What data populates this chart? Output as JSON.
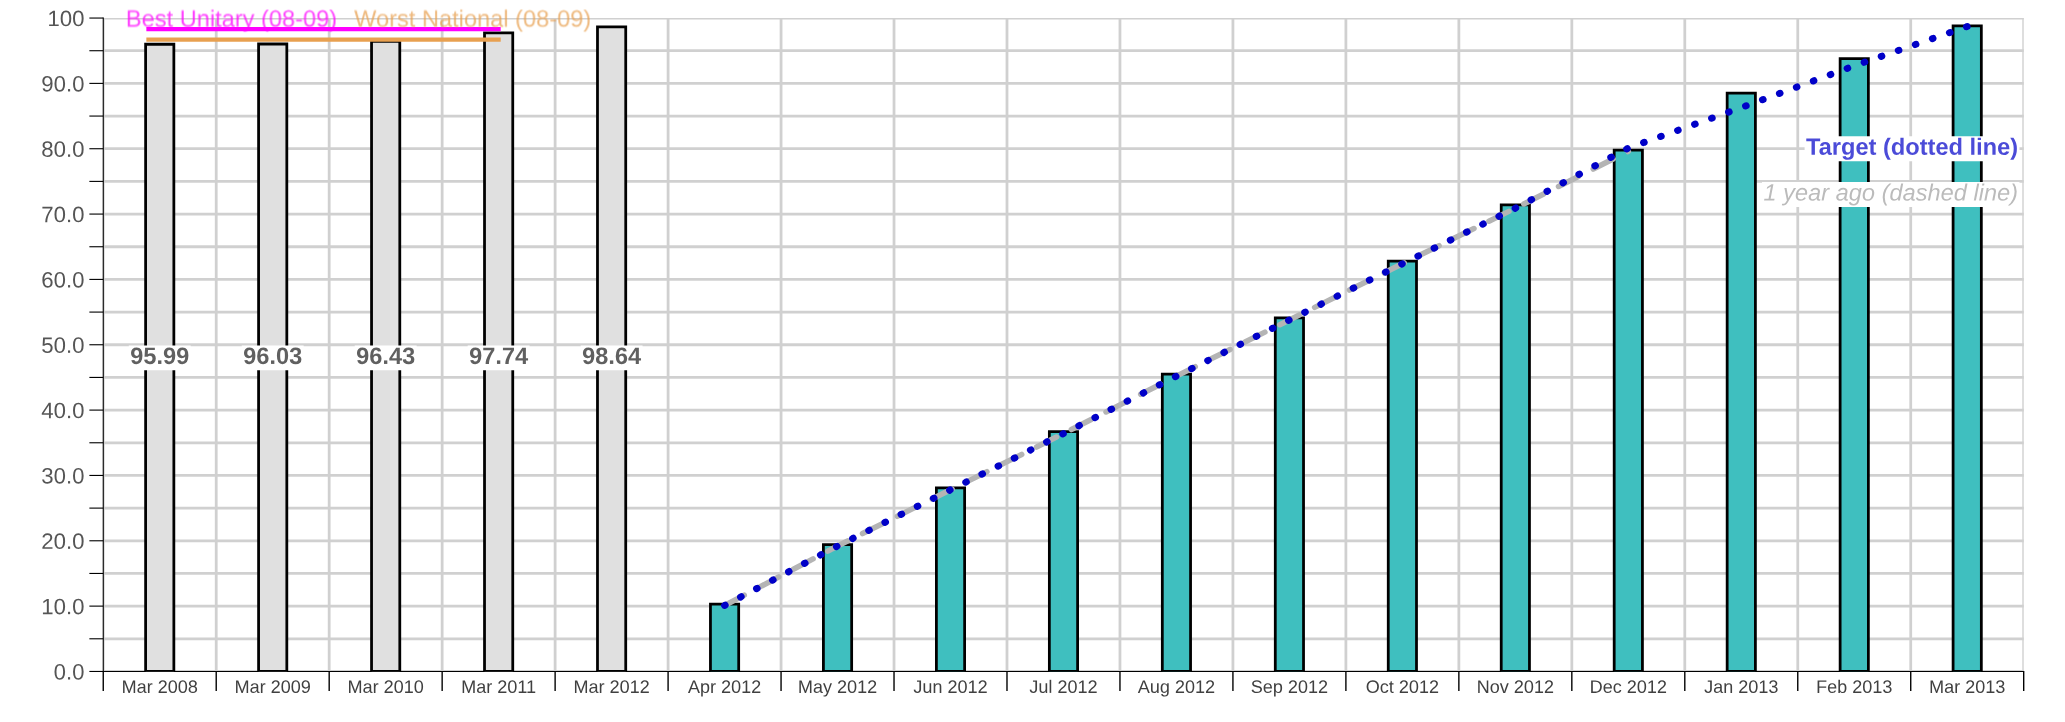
{
  "chart_data": {
    "type": "bar",
    "categories": [
      "Mar 2008",
      "Mar 2009",
      "Mar 2010",
      "Mar 2011",
      "Mar 2012",
      "Apr 2012",
      "May 2012",
      "Jun 2012",
      "Jul 2012",
      "Aug 2012",
      "Sep 2012",
      "Oct 2012",
      "Nov 2012",
      "Dec 2012",
      "Jan 2013",
      "Feb 2013",
      "Mar 2013"
    ],
    "series": [
      {
        "color": "#e0e0e0",
        "values": [
          95.99,
          96.03,
          96.43,
          97.74,
          98.64,
          null,
          null,
          null,
          null,
          null,
          null,
          null,
          null,
          null,
          null,
          null,
          null
        ],
        "value_labels": [
          "95.99",
          "96.03",
          "96.43",
          "97.74",
          "98.64",
          null,
          null,
          null,
          null,
          null,
          null,
          null,
          null,
          null,
          null,
          null,
          null
        ]
      },
      {
        "color": "#3fbfbf",
        "values": [
          null,
          null,
          null,
          null,
          null,
          10.3,
          19.4,
          28.1,
          36.7,
          45.5,
          54.1,
          62.8,
          71.4,
          79.8,
          88.5,
          93.8,
          98.8
        ]
      },
      {
        "type": "line",
        "name": "1 year ago (dashed line)",
        "color": "#b4b4b4",
        "line_style": "dashed",
        "values": [
          null,
          null,
          null,
          null,
          null,
          10.1,
          19.2,
          27.8,
          36.4,
          45.2,
          53.8,
          62.4,
          70.9,
          79.6,
          null,
          null,
          null
        ]
      },
      {
        "type": "line",
        "name": "Target (dotted line)",
        "color": "#0000c8",
        "line_style": "dotted",
        "values": [
          null,
          null,
          null,
          null,
          null,
          10.1,
          19.2,
          27.8,
          36.4,
          45.2,
          53.8,
          62.4,
          70.9,
          80.1,
          86.3,
          92.7,
          98.7
        ]
      }
    ],
    "ylim": [
      0,
      100
    ],
    "yticks": [
      {
        "value": 0,
        "label": "0.0"
      },
      {
        "value": 5,
        "label": null
      },
      {
        "value": 10,
        "label": "10.0"
      },
      {
        "value": 15,
        "label": null
      },
      {
        "value": 20,
        "label": "20.0"
      },
      {
        "value": 25,
        "label": null
      },
      {
        "value": 30,
        "label": "30.0"
      },
      {
        "value": 35,
        "label": null
      },
      {
        "value": 40,
        "label": "40.0"
      },
      {
        "value": 45,
        "label": null
      },
      {
        "value": 50,
        "label": "50.0"
      },
      {
        "value": 55,
        "label": null
      },
      {
        "value": 60,
        "label": "60.0"
      },
      {
        "value": 65,
        "label": null
      },
      {
        "value": 70,
        "label": "70.0"
      },
      {
        "value": 75,
        "label": null
      },
      {
        "value": 80,
        "label": "80.0"
      },
      {
        "value": 85,
        "label": null
      },
      {
        "value": 90,
        "label": "90.0"
      },
      {
        "value": 95,
        "label": null
      },
      {
        "value": 100,
        "label": "100"
      }
    ],
    "ref_lines": [
      {
        "axis": "y",
        "value": 98.3,
        "label": "Best Unitary (08-09)",
        "color": "#ff00ff"
      },
      {
        "axis": "y",
        "value": 96.7,
        "label": "Worst National (08-09)",
        "color": "#e8a050"
      }
    ],
    "grid": true
  }
}
